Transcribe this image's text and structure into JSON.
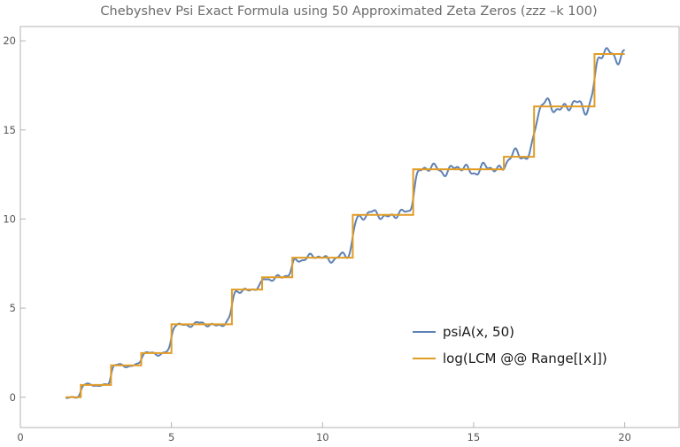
{
  "chart_data": {
    "type": "line",
    "title": "Chebyshev Psi Exact Formula using 50 Approximated Zeta Zeros (zzz –k 100)",
    "xlabel": "",
    "ylabel": "",
    "xlim": [
      0,
      21.8
    ],
    "ylim": [
      -1.7,
      20.8
    ],
    "x_ticks": [
      0,
      5,
      10,
      15,
      20
    ],
    "y_ticks": [
      0,
      5,
      10,
      15,
      20
    ],
    "grid": false,
    "legend_position": "right-center",
    "series": [
      {
        "name": "psiA(x, 50)",
        "color": "#5e81b5",
        "style": "oscillating-smooth",
        "domain": [
          1.5,
          20
        ]
      },
      {
        "name": "log(LCM @@ Range[⌊x⌋])",
        "color": "#e19c24",
        "style": "step",
        "steps": [
          {
            "x": 1.5,
            "y": 0
          },
          {
            "x": 2,
            "y": 0.69
          },
          {
            "x": 3,
            "y": 1.79
          },
          {
            "x": 4,
            "y": 2.48
          },
          {
            "x": 5,
            "y": 4.09
          },
          {
            "x": 7,
            "y": 6.04
          },
          {
            "x": 8,
            "y": 6.73
          },
          {
            "x": 9,
            "y": 7.83
          },
          {
            "x": 11,
            "y": 10.23
          },
          {
            "x": 13,
            "y": 12.79
          },
          {
            "x": 16,
            "y": 13.49
          },
          {
            "x": 17,
            "y": 16.32
          },
          {
            "x": 19,
            "y": 19.26
          }
        ],
        "x_end": 20
      }
    ]
  }
}
